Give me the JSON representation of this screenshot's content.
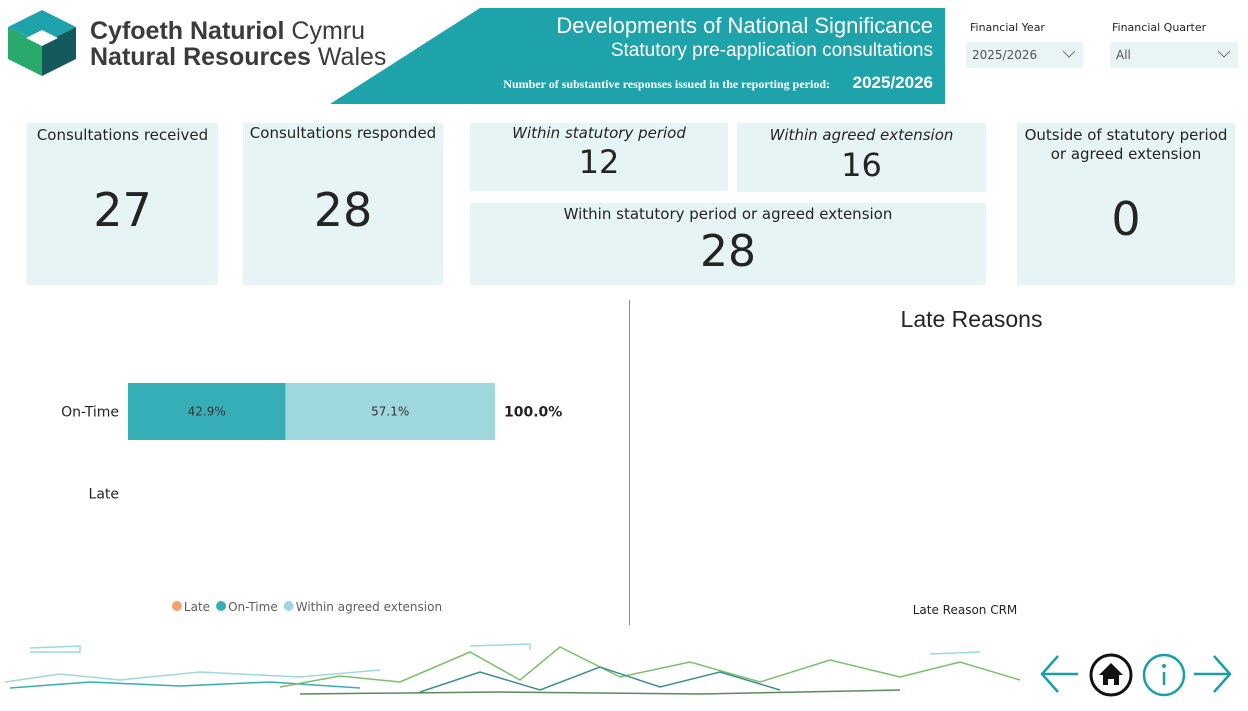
{
  "header": {
    "logo": {
      "line1_bold": "Cyfoeth Naturiol",
      "line1": "Cymru",
      "line2_bold": "Natural Resources",
      "line2": "Wales"
    },
    "banner": {
      "title": "Developments of National Significance",
      "subtitle": "Statutory pre-application consultations",
      "note": "Number of substantive responses issued in the reporting period:",
      "period": "2025/2026"
    }
  },
  "filters": [
    {
      "label": "Financial Year",
      "value": "2025/2026"
    },
    {
      "label": "Financial Quarter",
      "value": "All"
    }
  ],
  "cards": [
    {
      "label": "Consultations received",
      "value": 27
    },
    {
      "label": "Consultations responded",
      "value": 28
    },
    {
      "label": "Within statutory period",
      "value": 12
    },
    {
      "label": "Within agreed extension",
      "value": 16
    },
    {
      "label": "Within statutory period or agreed extension",
      "value": 28
    },
    {
      "label": "Outside of statutory period or agreed extension",
      "value": 0
    }
  ],
  "chart_data": [
    {
      "type": "stacked_barh",
      "categories": [
        "On-Time",
        "Late"
      ],
      "series": [
        {
          "name": "Late",
          "color": "#f4a06e",
          "values": [
            null,
            null
          ]
        },
        {
          "name": "On-Time",
          "color": "#36aeb8",
          "values": [
            42.9,
            null
          ],
          "value_labels": [
            "42.9%",
            null
          ]
        },
        {
          "name": "Within agreed extension",
          "color": "#9ed8de",
          "values": [
            57.1,
            null
          ],
          "value_labels": [
            "57.1%",
            null
          ]
        }
      ],
      "totals": [
        100.0,
        null
      ],
      "total_labels": [
        "100.0%",
        null
      ]
    },
    {
      "type": "bar",
      "title": "Late Reasons",
      "x_label": "Late Reason CRM"
    }
  ]
}
